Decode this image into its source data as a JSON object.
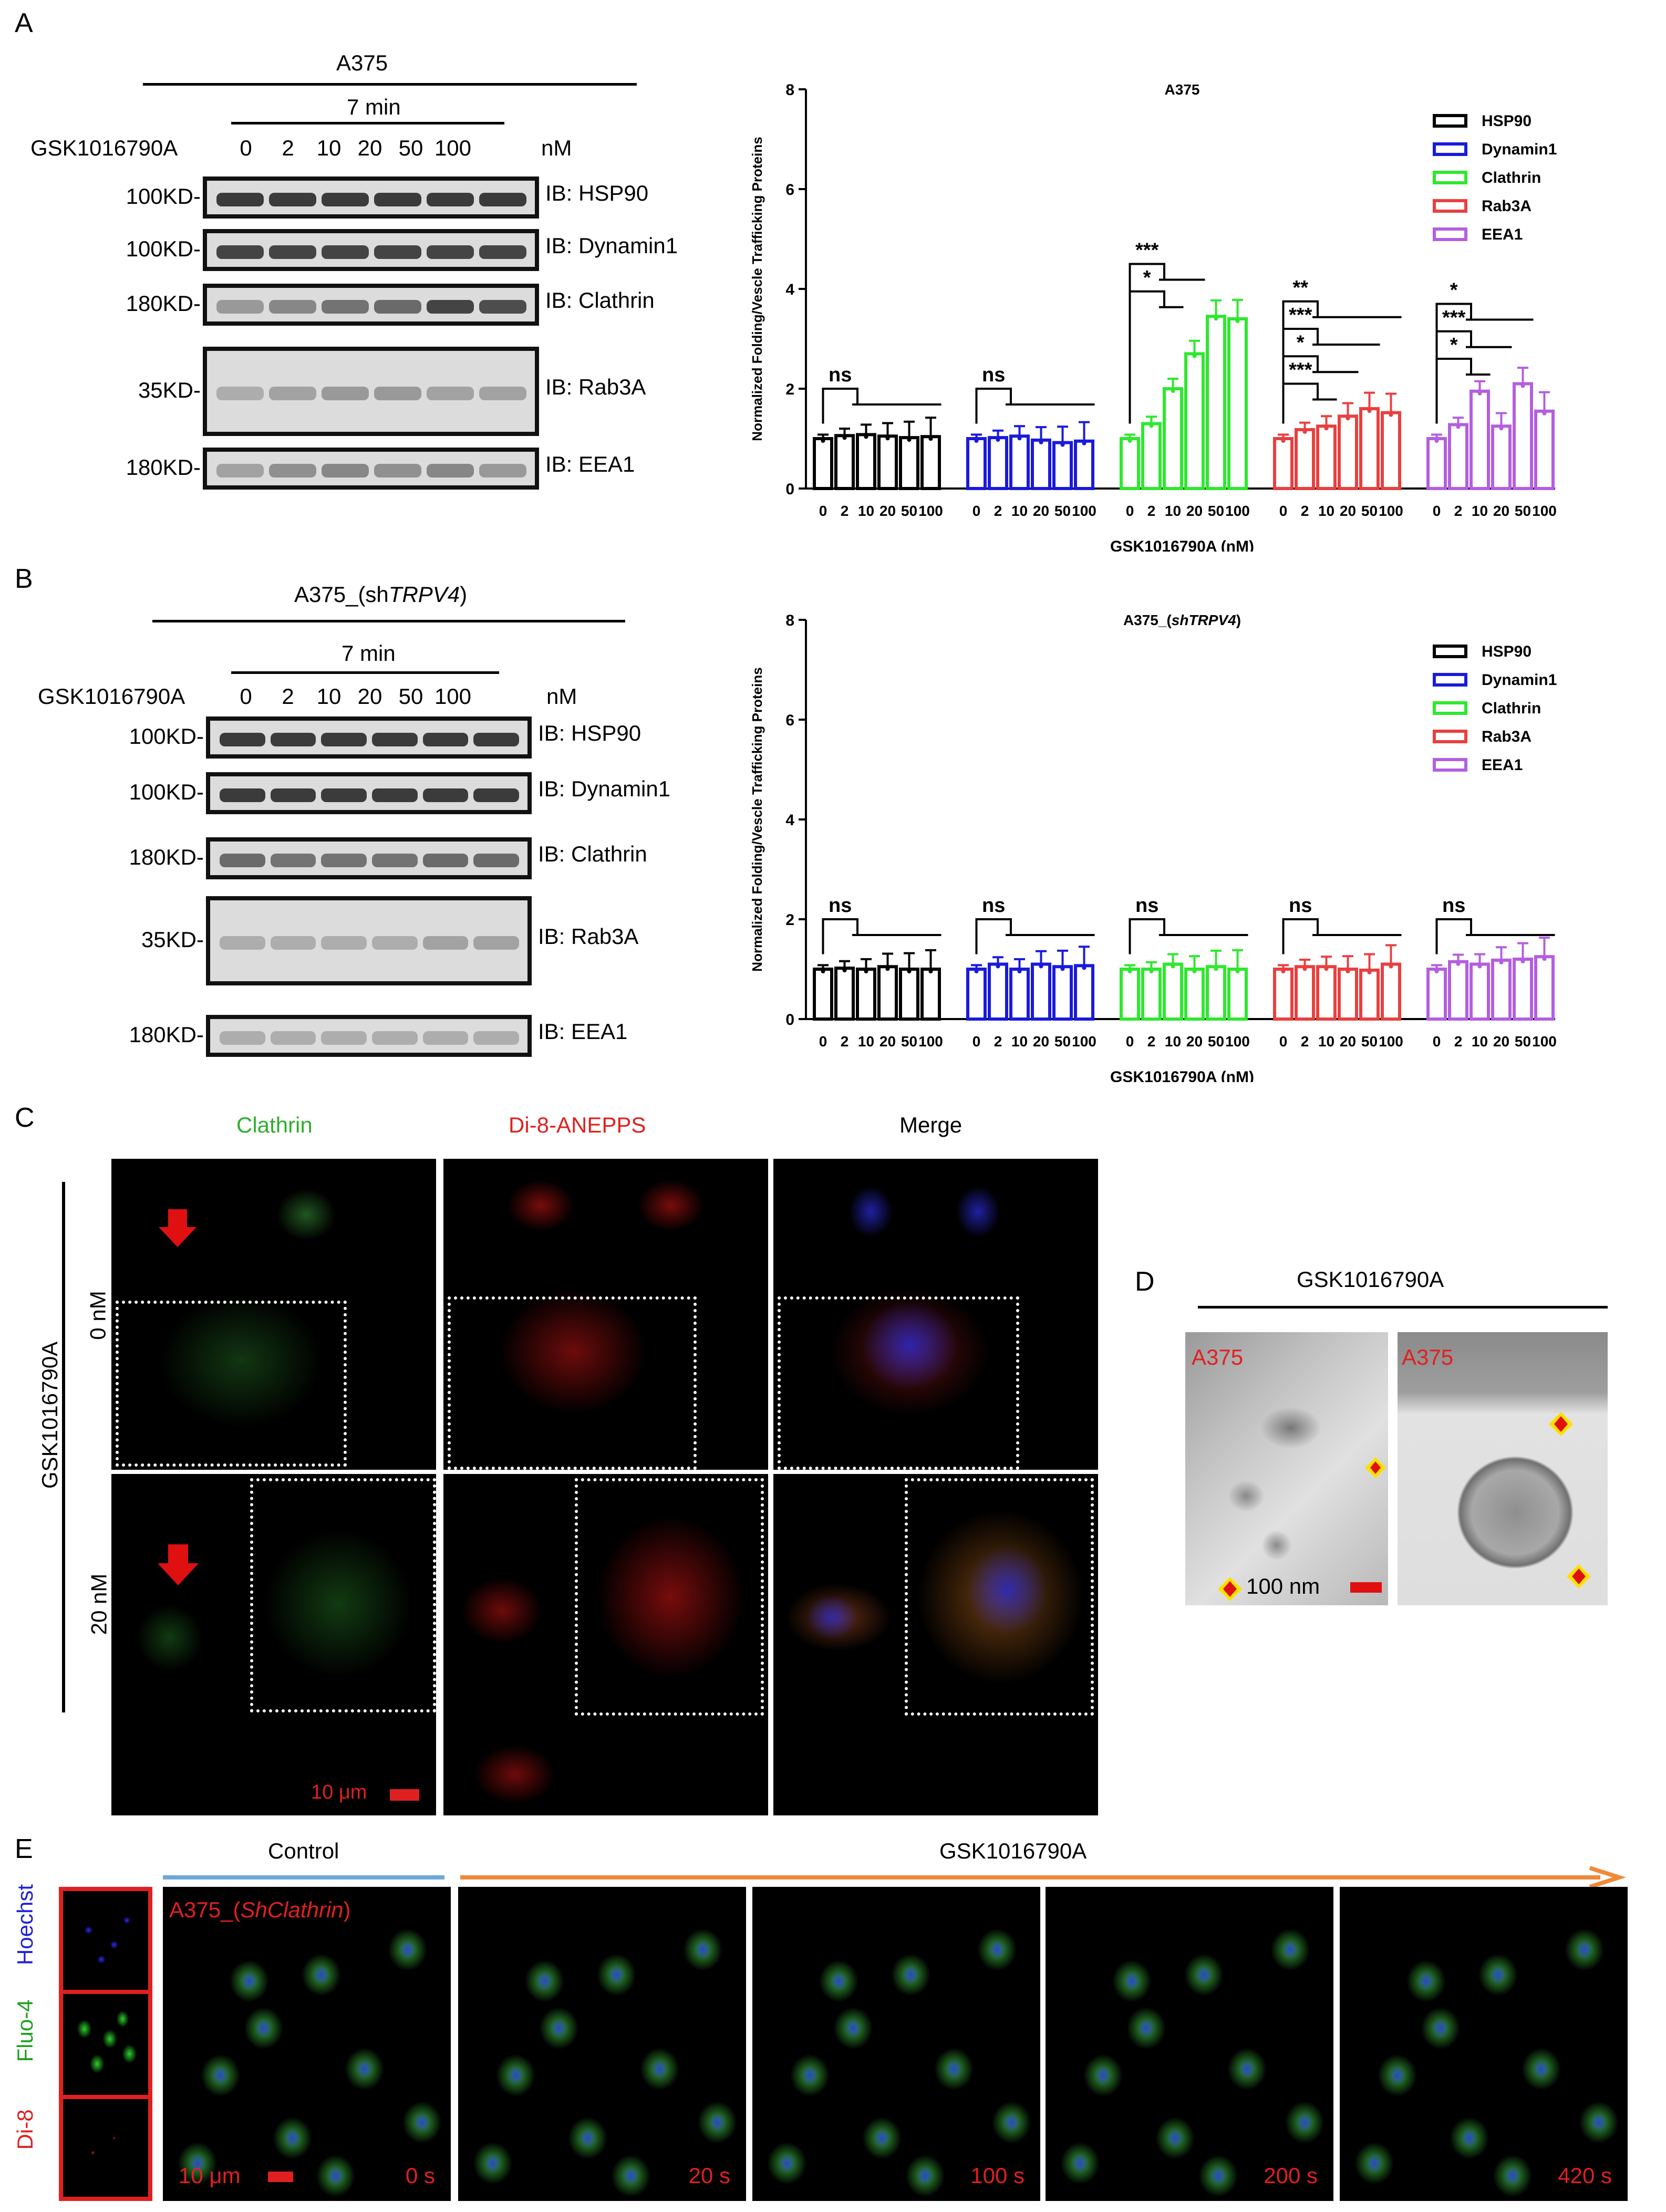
{
  "panels": {
    "A": "A",
    "B": "B",
    "C": "C",
    "D": "D",
    "E": "E"
  },
  "panelA": {
    "cell_line": "A375",
    "time": "7 min",
    "drug": "GSK1016790A",
    "doses": [
      "0",
      "2",
      "10",
      "20",
      "50",
      "100"
    ],
    "unit": "nM",
    "blots": [
      {
        "mw": "100KD-",
        "ib": "IB: HSP90"
      },
      {
        "mw": "100KD-",
        "ib": "IB: Dynamin1"
      },
      {
        "mw": "180KD-",
        "ib": "IB: Clathrin"
      },
      {
        "mw": "35KD-",
        "ib": "IB: Rab3A"
      },
      {
        "mw": "180KD-",
        "ib": "IB: EEA1"
      }
    ]
  },
  "panelB": {
    "cell_line_prefix": "A375_(sh",
    "cell_line_gene": "TRPV4",
    "cell_line_suffix": ")",
    "time": "7 min",
    "drug": "GSK1016790A",
    "doses": [
      "0",
      "2",
      "10",
      "20",
      "50",
      "100"
    ],
    "unit": "nM",
    "blots": [
      {
        "mw": "100KD-",
        "ib": "IB: HSP90"
      },
      {
        "mw": "100KD-",
        "ib": "IB: Dynamin1"
      },
      {
        "mw": "180KD-",
        "ib": "IB: Clathrin"
      },
      {
        "mw": "35KD-",
        "ib": "IB: Rab3A"
      },
      {
        "mw": "180KD-",
        "ib": "IB: EEA1"
      }
    ]
  },
  "chart_data": [
    {
      "type": "bar",
      "title": "A375",
      "xlabel": "GSK1016790A (nM)",
      "ylabel": "Normalized Folding/Vescle Trafficking Proteins",
      "ylim": [
        0,
        8
      ],
      "yticks": [
        "0",
        "2",
        "4",
        "6",
        "8"
      ],
      "categories": [
        "0",
        "2",
        "10",
        "20",
        "50",
        "100"
      ],
      "legend_position": "top-right",
      "series": [
        {
          "name": "HSP90",
          "color": "#000000",
          "values": [
            1.0,
            1.06,
            1.08,
            1.05,
            1.02,
            1.04
          ],
          "sig": [
            "ns"
          ]
        },
        {
          "name": "Dynamin1",
          "color": "#1a1adc",
          "values": [
            1.0,
            1.02,
            1.05,
            0.97,
            0.92,
            0.95
          ],
          "sig": [
            "ns"
          ]
        },
        {
          "name": "Clathrin",
          "color": "#2ee82e",
          "values": [
            1.0,
            1.3,
            2.0,
            2.7,
            3.45,
            3.4
          ],
          "sig": [
            "*",
            "***"
          ]
        },
        {
          "name": "Rab3A",
          "color": "#e84040",
          "values": [
            1.0,
            1.18,
            1.25,
            1.45,
            1.6,
            1.52
          ],
          "sig": [
            "***",
            "*",
            "***",
            "**"
          ]
        },
        {
          "name": "EEA1",
          "color": "#b35fe0",
          "values": [
            1.0,
            1.28,
            1.95,
            1.25,
            2.1,
            1.55
          ],
          "sig": [
            "*",
            "***",
            "*"
          ]
        }
      ]
    },
    {
      "type": "bar",
      "title_prefix": "A375_(",
      "title_gene": "shTRPV4",
      "title_suffix": ")",
      "xlabel": "GSK1016790A (nM)",
      "ylabel": "Normalized Folding/Vescle Trafficking Proteins",
      "ylim": [
        0,
        8
      ],
      "yticks": [
        "0",
        "2",
        "4",
        "6",
        "8"
      ],
      "categories": [
        "0",
        "2",
        "10",
        "20",
        "50",
        "100"
      ],
      "legend_position": "top-right",
      "series": [
        {
          "name": "HSP90",
          "color": "#000000",
          "values": [
            1.0,
            1.02,
            1.0,
            1.05,
            1.0,
            1.0
          ],
          "sig": [
            "ns"
          ]
        },
        {
          "name": "Dynamin1",
          "color": "#1a1adc",
          "values": [
            1.0,
            1.1,
            1.0,
            1.1,
            1.05,
            1.07
          ],
          "sig": [
            "ns"
          ]
        },
        {
          "name": "Clathrin",
          "color": "#2ee82e",
          "values": [
            1.0,
            1.0,
            1.1,
            1.0,
            1.05,
            1.0
          ],
          "sig": [
            "ns"
          ]
        },
        {
          "name": "Rab3A",
          "color": "#e84040",
          "values": [
            1.0,
            1.05,
            1.05,
            1.0,
            0.98,
            1.1
          ],
          "sig": [
            "ns"
          ]
        },
        {
          "name": "EEA1",
          "color": "#b35fe0",
          "values": [
            1.0,
            1.15,
            1.1,
            1.18,
            1.2,
            1.25
          ],
          "sig": [
            "ns"
          ]
        }
      ]
    }
  ],
  "panelC": {
    "columns": [
      "Clathrin",
      "Di-8-ANEPPS",
      "Merge"
    ],
    "column_colors": [
      "#2eae2e",
      "#e02020",
      "#000000"
    ],
    "drug": "GSK1016790A",
    "rows": [
      "0 nM",
      "20 nM"
    ],
    "scale": "10 μm"
  },
  "panelD": {
    "drug": "GSK1016790A",
    "image_labels": [
      "A375",
      "A375"
    ],
    "scale": "100 nm"
  },
  "panelE": {
    "control": "Control",
    "drug": "GSK1016790A",
    "channels": [
      "Hoechst",
      "Fluo-4",
      "Di-8"
    ],
    "cell_line_prefix": "A375_(",
    "cell_line_gene": "ShClathrin",
    "cell_line_suffix": ")",
    "scale": "10 μm",
    "times": [
      "0 s",
      "20 s",
      "100 s",
      "200 s",
      "420 s"
    ]
  }
}
